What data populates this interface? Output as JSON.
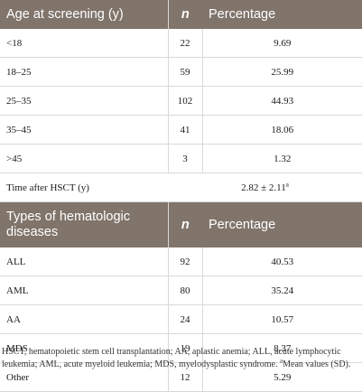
{
  "table": {
    "section1": {
      "headers": [
        "Age at screening (y)",
        "n",
        "Percentage"
      ],
      "rows": [
        {
          "label": "<18",
          "n": "22",
          "pct": "9.69"
        },
        {
          "label": "18–25",
          "n": "59",
          "pct": "25.99"
        },
        {
          "label": "25–35",
          "n": "102",
          "pct": "44.93"
        },
        {
          "label": "35–45",
          "n": "41",
          "pct": "18.06"
        },
        {
          "label": ">45",
          "n": "3",
          "pct": "1.32"
        }
      ],
      "time_row": {
        "label": "Time after HSCT (y)",
        "value": "2.82 ± 2.11",
        "mark": "a"
      }
    },
    "section2": {
      "headers": [
        "Types of hematologic diseases",
        "n",
        "Percentage"
      ],
      "rows": [
        {
          "label": "ALL",
          "n": "92",
          "pct": "40.53"
        },
        {
          "label": "AML",
          "n": "80",
          "pct": "35.24"
        },
        {
          "label": "AA",
          "n": "24",
          "pct": "10.57"
        },
        {
          "label": "MDS",
          "n": "19",
          "pct": "8.37"
        },
        {
          "label": "Other",
          "n": "12",
          "pct": "5.29"
        }
      ]
    }
  },
  "footnote": {
    "text": "HSCT, hematopoietic stem cell transplantation; AA, aplastic anemia; ALL, acute lymphocytic leukemia; AML, acute myeloid leukemia; MDS, myelodysplastic syndrome.",
    "mark": "a",
    "mark_text": "Mean values (SD)."
  }
}
